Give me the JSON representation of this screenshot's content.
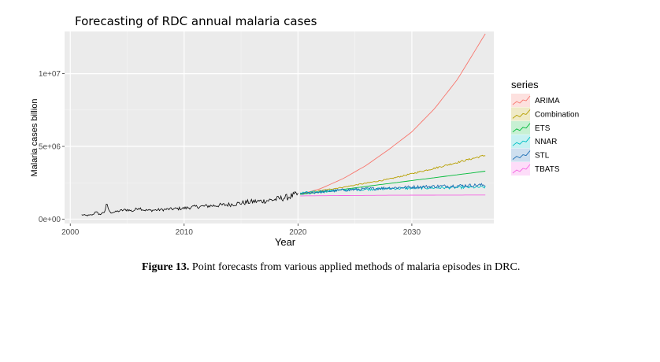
{
  "chart_data": {
    "type": "line",
    "title": "Forecasting of RDC annual malaria cases",
    "xlabel": "Year",
    "ylabel": "Malaria cases billion",
    "xlim": [
      1999.5,
      2037.2
    ],
    "ylim": [
      -300000,
      12900000
    ],
    "x_ticks": [
      2000,
      2010,
      2020,
      2030
    ],
    "x_tick_labels": [
      "2000",
      "2010",
      "2020",
      "2030"
    ],
    "y_ticks": [
      0,
      5000000,
      10000000
    ],
    "y_tick_labels": [
      "0e+00",
      "5e+06",
      "1e+07"
    ],
    "grid": true,
    "legend": {
      "title": "series",
      "position": "right"
    },
    "observed": {
      "x": [
        2001.0,
        2001.5,
        2002.0,
        2002.3,
        2002.5,
        2003.0,
        2003.2,
        2003.5,
        2004.0,
        2004.5,
        2005.0,
        2005.5,
        2006.0,
        2006.5,
        2007.0,
        2008.0,
        2009.0,
        2010.0,
        2011.0,
        2012.0,
        2013.0,
        2014.0,
        2015.0,
        2016.0,
        2017.0,
        2018.0,
        2019.0,
        2019.5,
        2020.0
      ],
      "y": [
        300000,
        250000,
        300000,
        600000,
        280000,
        500000,
        1000000,
        450000,
        500000,
        600000,
        650000,
        550000,
        800000,
        620000,
        600000,
        650000,
        700000,
        750000,
        850000,
        900000,
        950000,
        1000000,
        1100000,
        1200000,
        1250000,
        1350000,
        1500000,
        1600000,
        1700000
      ]
    },
    "series": [
      {
        "name": "ARIMA",
        "color": "#F8766D",
        "x": [
          2020.2,
          2022,
          2024,
          2026,
          2028,
          2030,
          2032,
          2034,
          2036.5
        ],
        "y": [
          1700000,
          2100000,
          2800000,
          3700000,
          4800000,
          6000000,
          7600000,
          9600000,
          12800000
        ]
      },
      {
        "name": "Combination",
        "color": "#B79F00",
        "x": [
          2020.2,
          2024,
          2028,
          2032,
          2036.5
        ],
        "y": [
          1750000,
          2200000,
          2750000,
          3500000,
          4400000
        ]
      },
      {
        "name": "ETS",
        "color": "#00BA38",
        "x": [
          2020.2,
          2024,
          2028,
          2032,
          2036.5
        ],
        "y": [
          1700000,
          2050000,
          2450000,
          2850000,
          3300000
        ]
      },
      {
        "name": "NNAR",
        "color": "#00BFC4",
        "x": [
          2020.2,
          2024,
          2028,
          2032,
          2036.5
        ],
        "y": [
          1800000,
          2000000,
          2100000,
          2150000,
          2200000
        ]
      },
      {
        "name": "STL",
        "color": "#1F6FB4",
        "x": [
          2020.2,
          2024,
          2028,
          2032,
          2036.5
        ],
        "y": [
          1750000,
          2000000,
          2150000,
          2250000,
          2350000
        ]
      },
      {
        "name": "TBATS",
        "color": "#F564E3",
        "x": [
          2020.2,
          2024,
          2028,
          2032,
          2036.5
        ],
        "y": [
          1600000,
          1620000,
          1640000,
          1650000,
          1660000
        ]
      }
    ]
  },
  "caption": {
    "label": "Figure 13.",
    "text": " Point forecasts from various applied methods of malaria episodes in DRC."
  }
}
